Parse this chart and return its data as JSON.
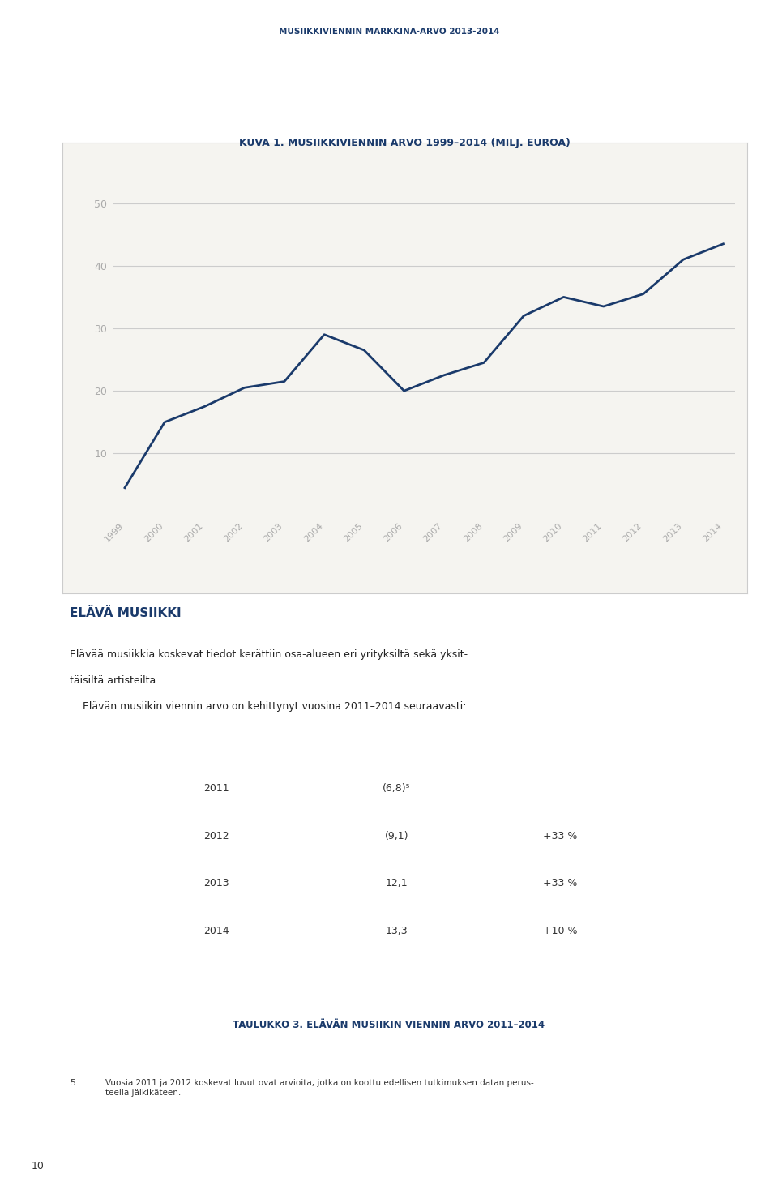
{
  "page_title": "MUSIIKKIVIENNIN MARKKINA-ARVO 2013-2014",
  "chart_title": "KUVA 1. MUSIIKKIVIENNIN ARVO 1999–2014 (MILJ. EUROA)",
  "years": [
    1999,
    2000,
    2001,
    2002,
    2003,
    2004,
    2005,
    2006,
    2007,
    2008,
    2009,
    2010,
    2011,
    2012,
    2013,
    2014
  ],
  "values": [
    4.5,
    15.0,
    17.5,
    20.5,
    21.5,
    29.0,
    26.5,
    20.0,
    22.5,
    24.5,
    32.0,
    35.0,
    33.5,
    35.5,
    41.0,
    43.5
  ],
  "line_color": "#1a3a6b",
  "line_width": 2.0,
  "yticks": [
    10,
    20,
    30,
    40,
    50
  ],
  "ylim": [
    0,
    55
  ],
  "grid_color": "#cccccc",
  "chart_bg": "#f5f4f0",
  "page_bg": "#ffffff",
  "section_title": "ELÄVÄ MUSIIKKI",
  "section_title_color": "#1a3a6b",
  "body_text1": "Elävää musiikkia koskevat tiedot kerättiin osa-alueen eri yrityksiltä sekä yksit-",
  "body_text2": "täisiltä artisteilta.",
  "body_text3": "    Elävän musiikin viennin arvo on kehittynyt vuosina 2011–2014 seuraavasti:",
  "table_header_bg": "#1a3a6b",
  "table_header_color": "#ffffff",
  "table_row_colors": [
    "#ffffff",
    "#e8e8e8",
    "#ffffff",
    "#e8e8e8"
  ],
  "table_years": [
    "2011",
    "2012",
    "2013",
    "2014"
  ],
  "table_values": [
    "(6,8)⁵",
    "(9,1)",
    "12,1",
    "13,3"
  ],
  "table_changes": [
    "",
    "+33 %",
    "+33 %",
    "+10 %"
  ],
  "table_caption": "TAULUKKO 3. ELÄVÄN MUSIIKIN VIENNIN ARVO 2011–2014",
  "table_caption_color": "#1a3a6b",
  "footnote_num": "5",
  "footnote_text": "Vuosia 2011 ja 2012 koskevat luvut ovat arvioita, jotka on koottu edellisen tutkimuksen datan perus-\nteella jälkikäteen.",
  "page_number": "10",
  "tick_label_color": "#aaaaaa",
  "axis_color": "#cccccc"
}
